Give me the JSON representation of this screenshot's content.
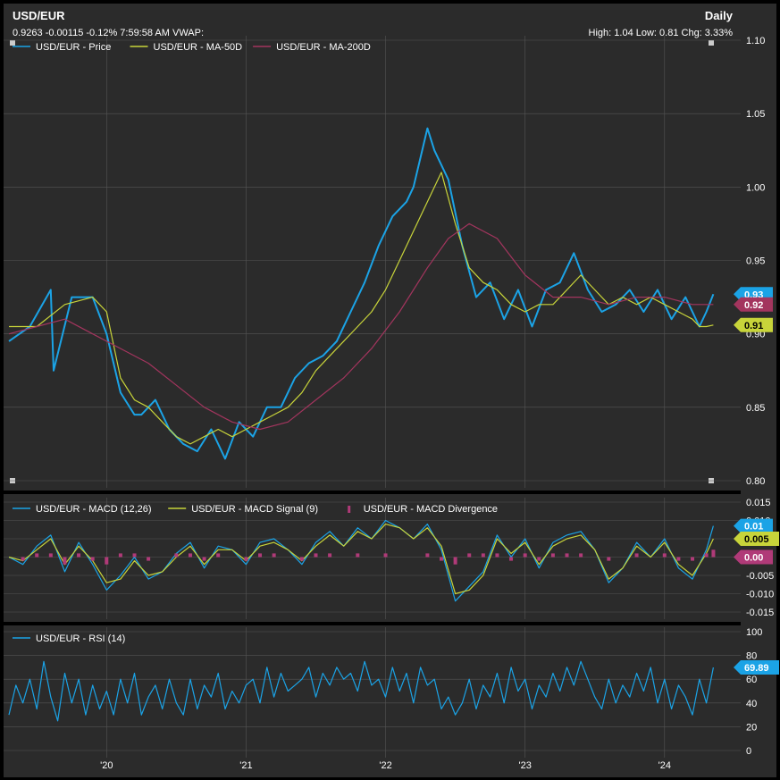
{
  "header": {
    "symbol": "USD/EUR",
    "quote_line": "0.9263 -0.00115 -0.12% 7:59:58 AM VWAP:",
    "interval": "Daily",
    "stats_line": "High: 1.04 Low: 0.81 Chg: 3.33%"
  },
  "colors": {
    "background": "#2b2b2b",
    "grid": "#555555",
    "price": "#1ba3e6",
    "ma50": "#c8d43a",
    "ma200": "#a3355e",
    "macd": "#1ba3e6",
    "signal": "#c8d43a",
    "divergence": "#b03a78",
    "rsi": "#1ba3e6"
  },
  "chart_data": [
    {
      "type": "line",
      "panel": "price",
      "x_ticks": [
        "'20",
        "'21",
        "'22",
        "'23",
        "'24"
      ],
      "y_ticks": [
        "1.10",
        "1.05",
        "1.00",
        "0.95",
        "0.90",
        "0.85",
        "0.80"
      ],
      "ylim": [
        0.8,
        1.1
      ],
      "legend": [
        "USD/EUR - Price",
        "USD/EUR - MA-50D",
        "USD/EUR - MA-200D"
      ],
      "legend_position": "top-left",
      "end_labels": [
        {
          "label": "0.93",
          "value": 0.927
        },
        {
          "label": "0.92",
          "value": 0.92
        },
        {
          "label": "0.91",
          "value": 0.906
        }
      ],
      "series": [
        {
          "name": "USD/EUR - Price",
          "x": [
            2019.3,
            2019.45,
            2019.6,
            2019.62,
            2019.75,
            2019.9,
            2020.0,
            2020.1,
            2020.2,
            2020.25,
            2020.35,
            2020.45,
            2020.55,
            2020.65,
            2020.75,
            2020.85,
            2020.95,
            2021.05,
            2021.15,
            2021.25,
            2021.35,
            2021.45,
            2021.55,
            2021.65,
            2021.75,
            2021.85,
            2021.95,
            2022.05,
            2022.15,
            2022.2,
            2022.3,
            2022.35,
            2022.45,
            2022.55,
            2022.65,
            2022.75,
            2022.85,
            2022.95,
            2023.05,
            2023.15,
            2023.25,
            2023.35,
            2023.45,
            2023.55,
            2023.65,
            2023.75,
            2023.85,
            2023.95,
            2024.05,
            2024.15,
            2024.25,
            2024.3,
            2024.35
          ],
          "values": [
            0.895,
            0.905,
            0.93,
            0.875,
            0.925,
            0.925,
            0.9,
            0.86,
            0.845,
            0.845,
            0.855,
            0.835,
            0.825,
            0.82,
            0.835,
            0.815,
            0.84,
            0.83,
            0.85,
            0.85,
            0.87,
            0.88,
            0.885,
            0.895,
            0.915,
            0.935,
            0.96,
            0.98,
            0.99,
            1.0,
            1.04,
            1.025,
            1.005,
            0.96,
            0.925,
            0.935,
            0.91,
            0.93,
            0.905,
            0.93,
            0.935,
            0.955,
            0.93,
            0.915,
            0.92,
            0.93,
            0.915,
            0.93,
            0.91,
            0.925,
            0.905,
            0.915,
            0.927
          ]
        },
        {
          "name": "USD/EUR - MA-50D",
          "x": [
            2019.3,
            2019.5,
            2019.7,
            2019.9,
            2020.0,
            2020.1,
            2020.2,
            2020.3,
            2020.4,
            2020.5,
            2020.6,
            2020.7,
            2020.8,
            2020.9,
            2021.0,
            2021.1,
            2021.2,
            2021.3,
            2021.4,
            2021.5,
            2021.6,
            2021.7,
            2021.8,
            2021.9,
            2022.0,
            2022.1,
            2022.2,
            2022.3,
            2022.4,
            2022.5,
            2022.6,
            2022.7,
            2022.8,
            2022.9,
            2023.0,
            2023.1,
            2023.2,
            2023.3,
            2023.4,
            2023.5,
            2023.6,
            2023.7,
            2023.8,
            2023.9,
            2024.0,
            2024.1,
            2024.2,
            2024.25,
            2024.3,
            2024.35
          ],
          "values": [
            0.905,
            0.905,
            0.92,
            0.925,
            0.915,
            0.87,
            0.855,
            0.85,
            0.84,
            0.83,
            0.825,
            0.83,
            0.835,
            0.83,
            0.835,
            0.84,
            0.845,
            0.85,
            0.86,
            0.875,
            0.885,
            0.895,
            0.905,
            0.915,
            0.93,
            0.95,
            0.97,
            0.99,
            1.01,
            0.975,
            0.945,
            0.935,
            0.93,
            0.92,
            0.915,
            0.92,
            0.92,
            0.93,
            0.94,
            0.93,
            0.92,
            0.925,
            0.92,
            0.925,
            0.92,
            0.915,
            0.91,
            0.905,
            0.905,
            0.906
          ]
        },
        {
          "name": "USD/EUR - MA-200D",
          "x": [
            2019.3,
            2019.5,
            2019.7,
            2019.9,
            2020.1,
            2020.3,
            2020.5,
            2020.7,
            2020.9,
            2021.1,
            2021.3,
            2021.5,
            2021.7,
            2021.9,
            2022.1,
            2022.3,
            2022.45,
            2022.6,
            2022.8,
            2023.0,
            2023.2,
            2023.4,
            2023.6,
            2023.8,
            2024.0,
            2024.2,
            2024.35
          ],
          "values": [
            0.9,
            0.905,
            0.91,
            0.9,
            0.89,
            0.88,
            0.865,
            0.85,
            0.84,
            0.835,
            0.84,
            0.855,
            0.87,
            0.89,
            0.915,
            0.945,
            0.965,
            0.975,
            0.965,
            0.94,
            0.925,
            0.925,
            0.92,
            0.925,
            0.925,
            0.92,
            0.92
          ]
        }
      ]
    },
    {
      "type": "line",
      "panel": "macd",
      "y_ticks": [
        "0.015",
        "0.010",
        "0.005",
        "0",
        "-0.005",
        "-0.010",
        "-0.015"
      ],
      "ylim": [
        -0.015,
        0.015
      ],
      "legend": [
        "USD/EUR - MACD (12,26)",
        "USD/EUR - MACD Signal (9)",
        "USD/EUR - MACD Divergence"
      ],
      "legend_position": "top-left",
      "end_labels": [
        {
          "label": "0.01",
          "value": 0.0085
        },
        {
          "label": "0.005",
          "value": 0.005
        },
        {
          "label": "0.00",
          "value": 0.0
        }
      ],
      "series": [
        {
          "name": "USD/EUR - MACD (12,26)",
          "x": [
            2019.3,
            2019.4,
            2019.5,
            2019.6,
            2019.7,
            2019.8,
            2019.9,
            2020.0,
            2020.1,
            2020.2,
            2020.3,
            2020.4,
            2020.5,
            2020.6,
            2020.7,
            2020.8,
            2020.9,
            2021.0,
            2021.1,
            2021.2,
            2021.3,
            2021.4,
            2021.5,
            2021.6,
            2021.7,
            2021.8,
            2021.9,
            2022.0,
            2022.1,
            2022.2,
            2022.3,
            2022.4,
            2022.5,
            2022.6,
            2022.7,
            2022.8,
            2022.9,
            2023.0,
            2023.1,
            2023.2,
            2023.3,
            2023.4,
            2023.5,
            2023.6,
            2023.7,
            2023.8,
            2023.9,
            2024.0,
            2024.1,
            2024.2,
            2024.3,
            2024.35
          ],
          "values": [
            0.0,
            -0.002,
            0.003,
            0.006,
            -0.004,
            0.004,
            -0.002,
            -0.009,
            -0.005,
            0.0,
            -0.006,
            -0.004,
            0.001,
            0.004,
            -0.003,
            0.003,
            0.002,
            -0.002,
            0.004,
            0.005,
            0.002,
            -0.002,
            0.004,
            0.007,
            0.003,
            0.008,
            0.005,
            0.01,
            0.008,
            0.005,
            0.009,
            0.002,
            -0.012,
            -0.008,
            -0.004,
            0.006,
            0.0,
            0.005,
            -0.003,
            0.004,
            0.006,
            0.007,
            0.002,
            -0.007,
            -0.003,
            0.004,
            0.0,
            0.005,
            -0.003,
            -0.006,
            0.002,
            0.0085
          ]
        },
        {
          "name": "USD/EUR - MACD Signal (9)",
          "x": [
            2019.3,
            2019.4,
            2019.5,
            2019.6,
            2019.7,
            2019.8,
            2019.9,
            2020.0,
            2020.1,
            2020.2,
            2020.3,
            2020.4,
            2020.5,
            2020.6,
            2020.7,
            2020.8,
            2020.9,
            2021.0,
            2021.1,
            2021.2,
            2021.3,
            2021.4,
            2021.5,
            2021.6,
            2021.7,
            2021.8,
            2021.9,
            2022.0,
            2022.1,
            2022.2,
            2022.3,
            2022.4,
            2022.5,
            2022.6,
            2022.7,
            2022.8,
            2022.9,
            2023.0,
            2023.1,
            2023.2,
            2023.3,
            2023.4,
            2023.5,
            2023.6,
            2023.7,
            2023.8,
            2023.9,
            2024.0,
            2024.1,
            2024.2,
            2024.3,
            2024.35
          ],
          "values": [
            0.0,
            -0.001,
            0.002,
            0.005,
            -0.002,
            0.003,
            -0.001,
            -0.007,
            -0.006,
            -0.001,
            -0.005,
            -0.004,
            0.0,
            0.003,
            -0.002,
            0.002,
            0.002,
            -0.001,
            0.003,
            0.004,
            0.002,
            -0.001,
            0.003,
            0.006,
            0.003,
            0.007,
            0.005,
            0.009,
            0.008,
            0.005,
            0.008,
            0.003,
            -0.01,
            -0.009,
            -0.005,
            0.005,
            0.001,
            0.004,
            -0.002,
            0.003,
            0.005,
            0.006,
            0.002,
            -0.006,
            -0.003,
            0.003,
            0.0,
            0.004,
            -0.002,
            -0.005,
            0.001,
            0.005
          ]
        },
        {
          "name": "USD/EUR - MACD Divergence",
          "x": [
            2019.3,
            2019.4,
            2019.5,
            2019.6,
            2019.7,
            2019.8,
            2019.9,
            2020.0,
            2020.1,
            2020.2,
            2020.3,
            2020.4,
            2020.5,
            2020.6,
            2020.7,
            2020.8,
            2020.9,
            2021.0,
            2021.1,
            2021.2,
            2021.3,
            2021.4,
            2021.5,
            2021.6,
            2021.7,
            2021.8,
            2021.9,
            2022.0,
            2022.1,
            2022.2,
            2022.3,
            2022.4,
            2022.5,
            2022.6,
            2022.7,
            2022.8,
            2022.9,
            2023.0,
            2023.1,
            2023.2,
            2023.3,
            2023.4,
            2023.5,
            2023.6,
            2023.7,
            2023.8,
            2023.9,
            2024.0,
            2024.1,
            2024.2,
            2024.3,
            2024.35
          ],
          "values": [
            0.0,
            -0.001,
            0.001,
            0.001,
            -0.002,
            0.001,
            -0.001,
            -0.002,
            0.001,
            0.001,
            -0.001,
            0.0,
            0.001,
            0.001,
            -0.001,
            0.001,
            0.0,
            -0.001,
            0.001,
            0.001,
            0.0,
            -0.001,
            0.001,
            0.001,
            0.0,
            0.001,
            0.0,
            0.001,
            0.0,
            0.0,
            0.001,
            -0.001,
            -0.002,
            0.001,
            0.001,
            0.001,
            -0.001,
            0.001,
            -0.001,
            0.001,
            0.001,
            0.001,
            0.0,
            -0.001,
            0.0,
            0.001,
            0.0,
            0.001,
            -0.001,
            -0.001,
            0.001,
            0.002
          ]
        }
      ]
    },
    {
      "type": "line",
      "panel": "rsi",
      "y_ticks": [
        "100",
        "80",
        "60",
        "40",
        "20",
        "0"
      ],
      "ylim": [
        0,
        100
      ],
      "legend": [
        "USD/EUR - RSI (14)"
      ],
      "legend_position": "top-left",
      "end_labels": [
        {
          "label": "69.89",
          "value": 69.89
        }
      ],
      "series": [
        {
          "name": "USD/EUR - RSI (14)",
          "x": [
            2019.3,
            2019.35,
            2019.4,
            2019.45,
            2019.5,
            2019.55,
            2019.6,
            2019.65,
            2019.7,
            2019.75,
            2019.8,
            2019.85,
            2019.9,
            2019.95,
            2020.0,
            2020.05,
            2020.1,
            2020.15,
            2020.2,
            2020.25,
            2020.3,
            2020.35,
            2020.4,
            2020.45,
            2020.5,
            2020.55,
            2020.6,
            2020.65,
            2020.7,
            2020.75,
            2020.8,
            2020.85,
            2020.9,
            2020.95,
            2021.0,
            2021.05,
            2021.1,
            2021.15,
            2021.2,
            2021.25,
            2021.3,
            2021.35,
            2021.4,
            2021.45,
            2021.5,
            2021.55,
            2021.6,
            2021.65,
            2021.7,
            2021.75,
            2021.8,
            2021.85,
            2021.9,
            2021.95,
            2022.0,
            2022.05,
            2022.1,
            2022.15,
            2022.2,
            2022.25,
            2022.3,
            2022.35,
            2022.4,
            2022.45,
            2022.5,
            2022.55,
            2022.6,
            2022.65,
            2022.7,
            2022.75,
            2022.8,
            2022.85,
            2022.9,
            2022.95,
            2023.0,
            2023.05,
            2023.1,
            2023.15,
            2023.2,
            2023.25,
            2023.3,
            2023.35,
            2023.4,
            2023.45,
            2023.5,
            2023.55,
            2023.6,
            2023.65,
            2023.7,
            2023.75,
            2023.8,
            2023.85,
            2023.9,
            2023.95,
            2024.0,
            2024.05,
            2024.1,
            2024.15,
            2024.2,
            2024.25,
            2024.3,
            2024.35
          ],
          "values": [
            30,
            55,
            40,
            60,
            35,
            75,
            45,
            25,
            65,
            40,
            60,
            30,
            55,
            35,
            50,
            30,
            60,
            40,
            65,
            30,
            45,
            55,
            35,
            60,
            40,
            30,
            60,
            35,
            55,
            45,
            65,
            35,
            50,
            40,
            55,
            60,
            40,
            70,
            45,
            65,
            50,
            55,
            60,
            70,
            45,
            65,
            55,
            70,
            60,
            65,
            50,
            75,
            55,
            60,
            45,
            70,
            50,
            65,
            40,
            70,
            55,
            60,
            35,
            45,
            30,
            40,
            60,
            35,
            55,
            45,
            65,
            40,
            70,
            50,
            60,
            35,
            55,
            45,
            65,
            50,
            70,
            55,
            75,
            60,
            45,
            35,
            60,
            40,
            55,
            45,
            65,
            50,
            70,
            40,
            60,
            35,
            55,
            45,
            30,
            60,
            40,
            69.89
          ]
        }
      ]
    }
  ]
}
